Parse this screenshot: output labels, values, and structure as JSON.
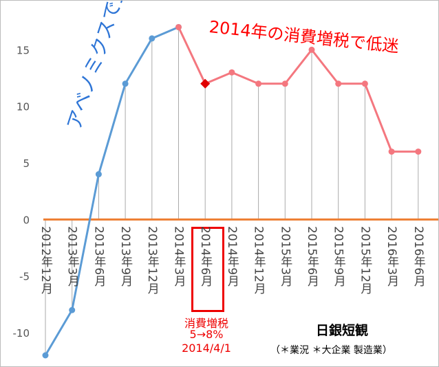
{
  "chart_data": {
    "type": "line",
    "categories": [
      "2012年12月",
      "2013年3月",
      "2013年6月",
      "2013年9月",
      "2013年12月",
      "2014年3月",
      "2014年6月",
      "2014年9月",
      "2014年12月",
      "2015年3月",
      "2015年6月",
      "2015年9月",
      "2015年12月",
      "2016年3月",
      "2016年6月"
    ],
    "series": [
      {
        "name": "アベノミクスで上昇",
        "color": "#5b9bd5",
        "values": [
          -12,
          -8,
          4,
          12,
          16,
          17,
          null,
          null,
          null,
          null,
          null,
          null,
          null,
          null,
          null
        ]
      },
      {
        "name": "2014年の消費増税で低迷",
        "color": "#f4777f",
        "values": [
          null,
          null,
          null,
          null,
          null,
          17,
          12,
          13,
          12,
          12,
          15,
          12,
          12,
          6,
          6
        ],
        "highlight": 6,
        "highlight_color": "#e00000"
      }
    ],
    "ylim": [
      -12,
      18
    ],
    "yticks": [
      -10,
      -5,
      0,
      5,
      10,
      15
    ],
    "zero_line_color": "#ed7d31",
    "annotations": {
      "tax_label": [
        "消費増税",
        "5→8%",
        "2014/4/1"
      ],
      "title": "日銀短観",
      "subtitle": "（＊業況 ＊大企業 製造業）"
    }
  }
}
